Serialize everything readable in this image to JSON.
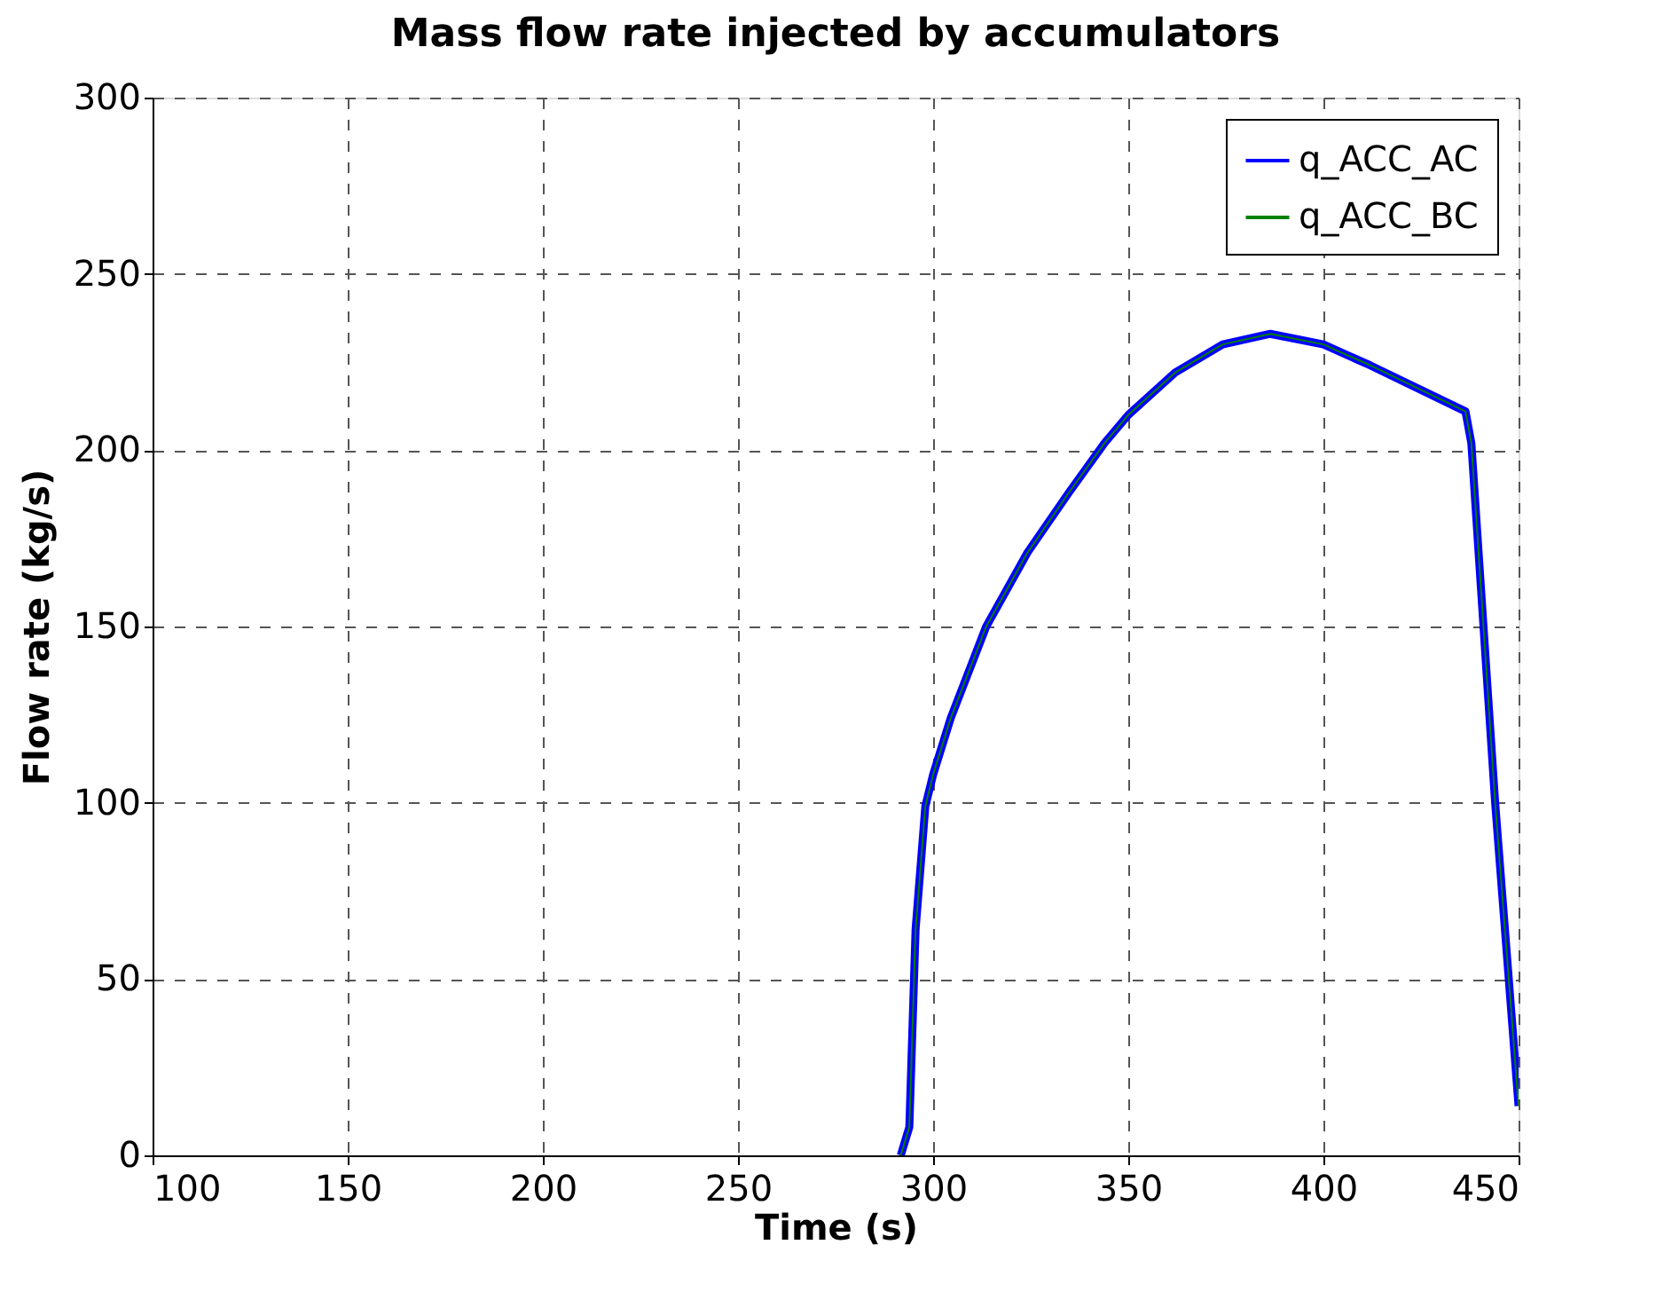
{
  "chart_data": {
    "type": "line",
    "title": "Mass flow rate injected by accumulators",
    "xlabel": "Time (s)",
    "ylabel": "Flow rate (kg/s)",
    "x": [
      291.7,
      293.9,
      295.5,
      298,
      300,
      304.5,
      313.6,
      324.2,
      334.8,
      343.9,
      350,
      362,
      374.2,
      386.4,
      400,
      412.1,
      436.4,
      437.9,
      444,
      450
    ],
    "series": [
      {
        "name": "q_ACC_AC",
        "color": "#0000ff",
        "values": [
          0,
          8,
          64,
          99,
          108,
          124,
          150,
          171,
          188,
          202,
          210,
          222,
          230,
          233,
          230,
          224,
          211,
          202,
          100,
          14
        ]
      },
      {
        "name": "q_ACC_BC",
        "color": "#008000",
        "values": [
          0,
          8,
          64,
          99,
          108,
          124,
          150,
          171,
          188,
          202,
          210,
          222,
          230,
          233,
          230,
          224,
          211,
          202,
          100,
          14
        ]
      }
    ],
    "xlim": [
      100,
      450
    ],
    "xticks": [
      100,
      150,
      200,
      250,
      300,
      350,
      400,
      450
    ],
    "ylim": [
      0,
      300
    ],
    "yticks": [
      0,
      50,
      100,
      150,
      200,
      250,
      300
    ],
    "grid": true,
    "legend": "top right",
    "marker": "none",
    "line_style": "solid"
  }
}
